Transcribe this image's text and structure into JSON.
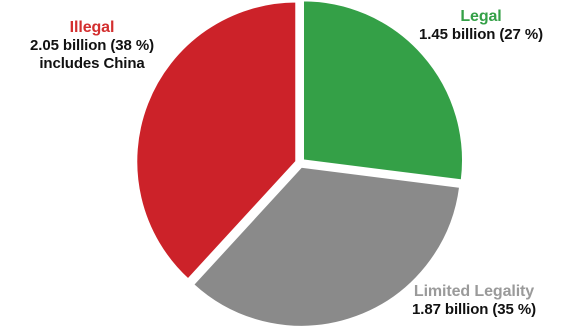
{
  "chart_data": {
    "type": "pie",
    "unit": "billion",
    "slices": [
      {
        "key": "legal",
        "name": "Legal",
        "value": 1.45,
        "value_text": "1.45 billion (27 %)",
        "percent": 27,
        "color": "#34a047"
      },
      {
        "key": "limited",
        "name": "Limited Legality",
        "value": 1.87,
        "value_text": "1.87 billion (35 %)",
        "percent": 35,
        "color": "#8a8a8a"
      },
      {
        "key": "illegal",
        "name": "Illegal",
        "value": 2.05,
        "value_text": "2.05 billion (38 %)",
        "note": "includes China",
        "percent": 38,
        "color": "#cc2229"
      }
    ],
    "label_colors": {
      "legal": "#34a047",
      "limited": "#9a9a9a",
      "illegal": "#d32f2f"
    },
    "legend": "none",
    "start_angle_deg": 0,
    "direction": "clockwise"
  }
}
